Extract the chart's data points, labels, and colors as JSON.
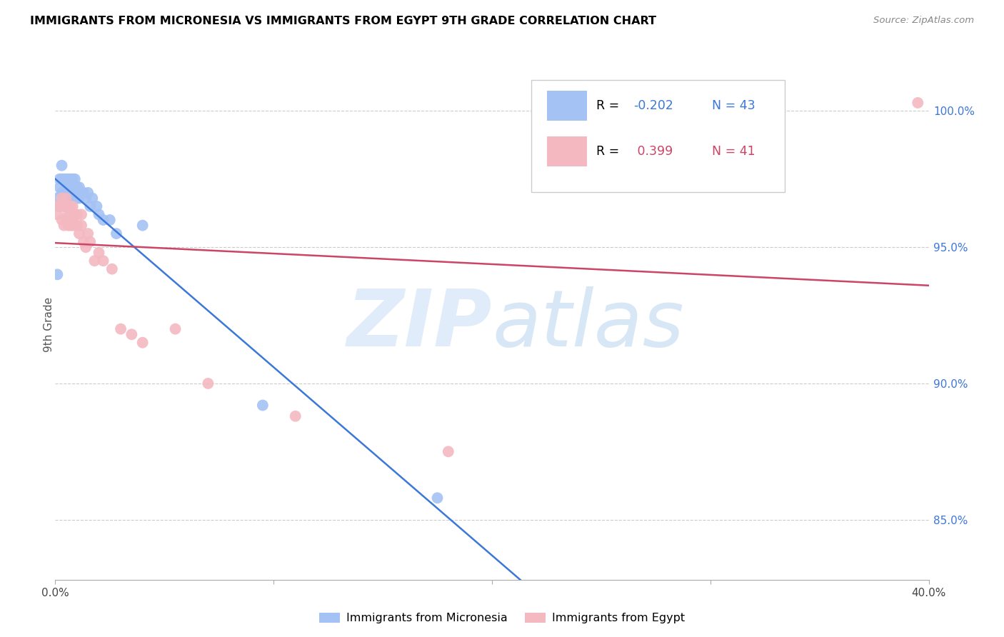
{
  "title": "IMMIGRANTS FROM MICRONESIA VS IMMIGRANTS FROM EGYPT 9TH GRADE CORRELATION CHART",
  "source": "Source: ZipAtlas.com",
  "ylabel": "9th Grade",
  "x_range": [
    0.0,
    0.4
  ],
  "y_range": [
    0.828,
    1.015
  ],
  "y_ticks": [
    0.85,
    0.9,
    0.95,
    1.0
  ],
  "y_tick_labels": [
    "85.0%",
    "90.0%",
    "95.0%",
    "100.0%"
  ],
  "x_ticks": [
    0.0,
    0.1,
    0.2,
    0.3,
    0.4
  ],
  "x_tick_labels": [
    "0.0%",
    "",
    "",
    "",
    "40.0%"
  ],
  "legend_r1": "R = -0.202",
  "legend_n1": "N = 43",
  "legend_r2": "R =  0.399",
  "legend_n2": "N = 41",
  "color_blue": "#a4c2f4",
  "color_pink": "#f4b8c1",
  "color_blue_line": "#3c78d8",
  "color_pink_line": "#cc4466",
  "micronesia_x": [
    0.001,
    0.001,
    0.002,
    0.002,
    0.003,
    0.003,
    0.003,
    0.004,
    0.004,
    0.004,
    0.005,
    0.005,
    0.005,
    0.005,
    0.006,
    0.006,
    0.006,
    0.007,
    0.007,
    0.007,
    0.008,
    0.008,
    0.009,
    0.009,
    0.009,
    0.01,
    0.01,
    0.011,
    0.011,
    0.012,
    0.013,
    0.014,
    0.015,
    0.016,
    0.017,
    0.019,
    0.02,
    0.022,
    0.025,
    0.028,
    0.04,
    0.095,
    0.175
  ],
  "micronesia_y": [
    0.94,
    0.968,
    0.972,
    0.975,
    0.97,
    0.975,
    0.98,
    0.965,
    0.97,
    0.975,
    0.965,
    0.968,
    0.972,
    0.975,
    0.965,
    0.97,
    0.975,
    0.968,
    0.972,
    0.975,
    0.97,
    0.975,
    0.968,
    0.972,
    0.975,
    0.968,
    0.972,
    0.968,
    0.972,
    0.97,
    0.97,
    0.968,
    0.97,
    0.965,
    0.968,
    0.965,
    0.962,
    0.96,
    0.96,
    0.955,
    0.958,
    0.892,
    0.858
  ],
  "egypt_x": [
    0.001,
    0.001,
    0.002,
    0.003,
    0.003,
    0.004,
    0.004,
    0.005,
    0.005,
    0.005,
    0.006,
    0.006,
    0.007,
    0.007,
    0.007,
    0.008,
    0.008,
    0.008,
    0.009,
    0.009,
    0.01,
    0.01,
    0.011,
    0.012,
    0.012,
    0.013,
    0.014,
    0.015,
    0.016,
    0.018,
    0.02,
    0.022,
    0.026,
    0.03,
    0.035,
    0.04,
    0.055,
    0.07,
    0.11,
    0.18,
    0.395
  ],
  "egypt_y": [
    0.962,
    0.965,
    0.965,
    0.96,
    0.968,
    0.958,
    0.965,
    0.96,
    0.965,
    0.968,
    0.958,
    0.962,
    0.958,
    0.962,
    0.965,
    0.958,
    0.96,
    0.965,
    0.958,
    0.962,
    0.958,
    0.962,
    0.955,
    0.958,
    0.962,
    0.952,
    0.95,
    0.955,
    0.952,
    0.945,
    0.948,
    0.945,
    0.942,
    0.92,
    0.918,
    0.915,
    0.92,
    0.9,
    0.888,
    0.875,
    1.003
  ]
}
